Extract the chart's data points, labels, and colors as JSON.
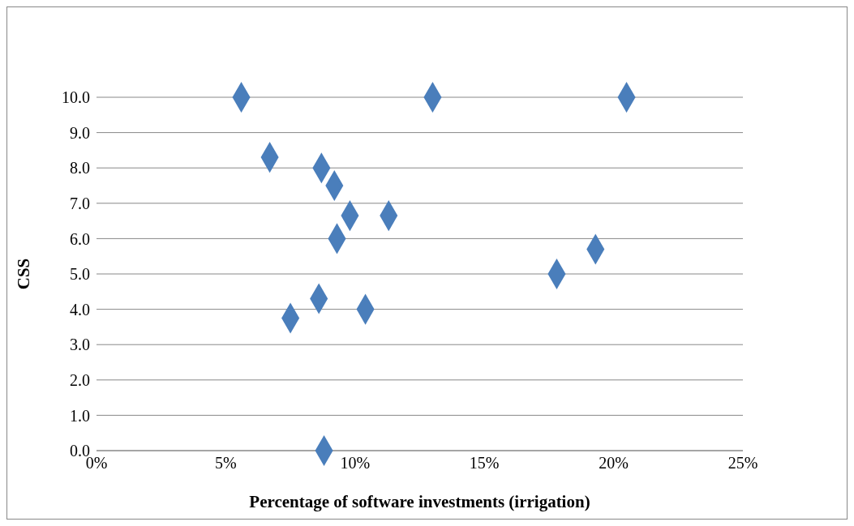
{
  "chart_data": {
    "type": "scatter",
    "xlabel": "Percentage of software investments (irrigation)",
    "ylabel": "CSS",
    "x": [
      5.6,
      13.0,
      20.5,
      6.7,
      8.7,
      9.2,
      9.8,
      11.3,
      9.3,
      17.8,
      19.3,
      8.6,
      7.5,
      10.4,
      8.8
    ],
    "series": [
      {
        "color": "#4a7ebb",
        "values": [
          10,
          10,
          10,
          8.3,
          8.0,
          7.5,
          6.65,
          6.65,
          6.0,
          5.0,
          5.7,
          4.3,
          3.75,
          4.0,
          0
        ]
      }
    ],
    "xlim": [
      0,
      25
    ],
    "xticks": [
      {
        "value": 0,
        "label": "0%"
      },
      {
        "value": 5,
        "label": "5%"
      },
      {
        "value": 10,
        "label": "10%"
      },
      {
        "value": 15,
        "label": "15%"
      },
      {
        "value": 20,
        "label": "20%"
      },
      {
        "value": 25,
        "label": "25%"
      }
    ],
    "ylim": [
      0,
      10
    ],
    "yticks": [
      {
        "value": 0,
        "label": "0.0"
      },
      {
        "value": 1,
        "label": "1.0"
      },
      {
        "value": 2,
        "label": "2.0"
      },
      {
        "value": 3,
        "label": "3.0"
      },
      {
        "value": 4,
        "label": "4.0"
      },
      {
        "value": 5,
        "label": "5.0"
      },
      {
        "value": 6,
        "label": "6.0"
      },
      {
        "value": 7,
        "label": "7.0"
      },
      {
        "value": 8,
        "label": "8.0"
      },
      {
        "value": 9,
        "label": "9.0"
      },
      {
        "value": 10,
        "label": "10.0"
      }
    ],
    "grid": "y",
    "marker": "diamond"
  }
}
